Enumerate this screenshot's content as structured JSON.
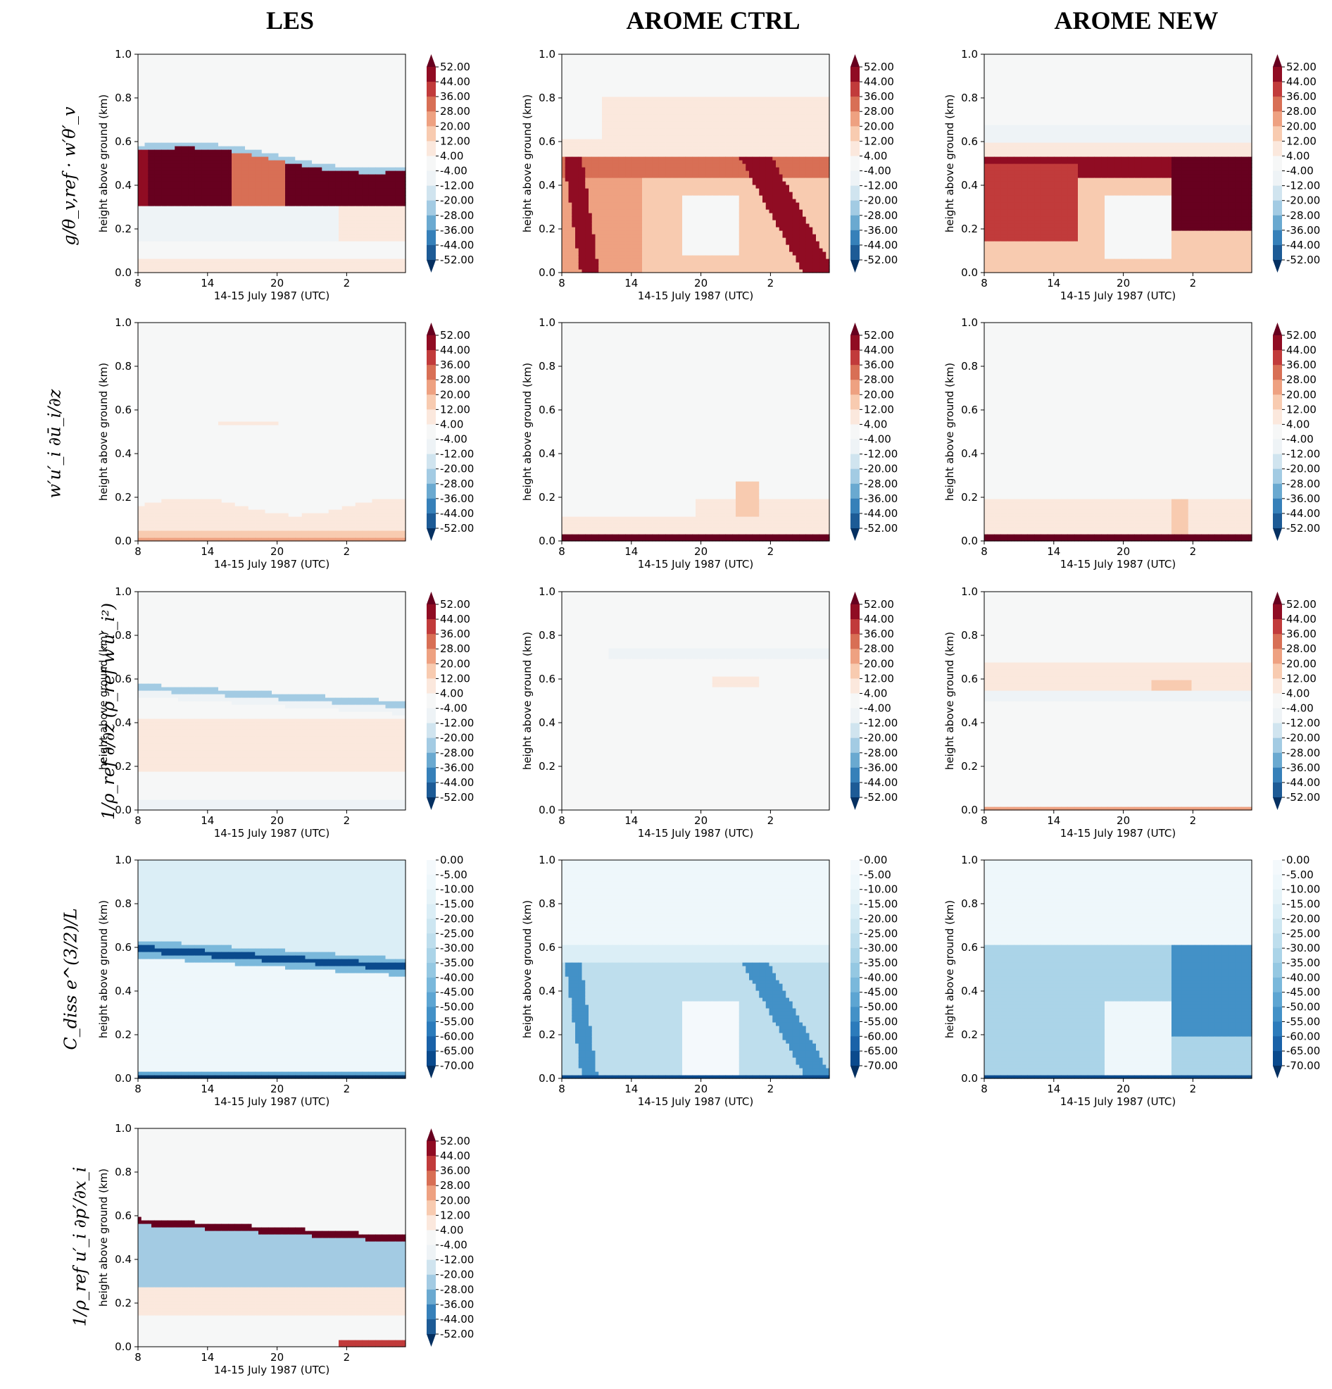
{
  "column_titles": [
    "LES",
    "AROME CTRL",
    "AROME NEW"
  ],
  "row_labels": [
    "g/θ_v,ref · w′θ′_v",
    "w′u′_i ∂ū_i/∂z",
    "1/ρ_ref ∂/∂z (ρ_ref w′u′_i²)",
    "C_diss e^(3/2)/L",
    "1/ρ_ref u′_i ∂p′/∂x_i"
  ],
  "colors": {
    "diverging": [
      "#053061",
      "#1d5b96",
      "#3680b9",
      "#6aa9d0",
      "#a3cbe3",
      "#d0e4ef",
      "#eef3f6",
      "#f6f7f7",
      "#fbe8dd",
      "#f8cbb0",
      "#eea181",
      "#d86f55",
      "#c13b3b",
      "#900c23",
      "#67001f"
    ],
    "sequential": [
      "#053061",
      "#0a4a8d",
      "#1a62a8",
      "#2c7bbb",
      "#4391c7",
      "#5da5d2",
      "#7ab8db",
      "#95c8e2",
      "#abd4e8",
      "#bedeed",
      "#cde6f1",
      "#dbeef6",
      "#e6f3f8",
      "#eef7fb",
      "#f4f9fc"
    ]
  },
  "chart_data": [
    {
      "type": "heatmap",
      "row": 0,
      "col": 0,
      "column_title": "LES",
      "xlabel": "14-15 July 1987 (UTC)",
      "ylabel": "height above ground (km)",
      "xticks": [
        "8",
        "14",
        "20",
        "2"
      ],
      "yticks": [
        "0.0",
        "0.2",
        "0.4",
        "0.6",
        "0.8",
        "1.0"
      ],
      "ylim": [
        0,
        1
      ],
      "colorbar": {
        "levels": [
          "52.00",
          "44.00",
          "36.00",
          "28.00",
          "20.00",
          "12.00",
          "4.00",
          "-4.00",
          "-12.00",
          "-20.00",
          "-28.00",
          "-36.00",
          "-44.00",
          "-52.00"
        ],
        "extend": "both",
        "scheme": "diverging"
      },
      "pattern": "les_buoy"
    },
    {
      "type": "heatmap",
      "row": 0,
      "col": 1,
      "column_title": "AROME CTRL",
      "xlabel": "14-15 July 1987 (UTC)",
      "ylabel": "height above ground (km)",
      "xticks": [
        "8",
        "14",
        "20",
        "2"
      ],
      "yticks": [
        "0.0",
        "0.2",
        "0.4",
        "0.6",
        "0.8",
        "1.0"
      ],
      "ylim": [
        0,
        1
      ],
      "colorbar": {
        "levels": [
          "52.00",
          "44.00",
          "36.00",
          "28.00",
          "20.00",
          "12.00",
          "4.00",
          "-4.00",
          "-12.00",
          "-20.00",
          "-28.00",
          "-36.00",
          "-44.00",
          "-52.00"
        ],
        "extend": "both",
        "scheme": "diverging"
      },
      "pattern": "ctrl_buoy"
    },
    {
      "type": "heatmap",
      "row": 0,
      "col": 2,
      "column_title": "AROME NEW",
      "xlabel": "14-15 July 1987 (UTC)",
      "ylabel": "height above ground (km)",
      "xticks": [
        "8",
        "14",
        "20",
        "2"
      ],
      "yticks": [
        "0.0",
        "0.2",
        "0.4",
        "0.6",
        "0.8",
        "1.0"
      ],
      "ylim": [
        0,
        1
      ],
      "colorbar": {
        "levels": [
          "52.00",
          "44.00",
          "36.00",
          "28.00",
          "20.00",
          "12.00",
          "4.00",
          "-4.00",
          "-12.00",
          "-20.00",
          "-28.00",
          "-36.00",
          "-44.00",
          "-52.00"
        ],
        "extend": "both",
        "scheme": "diverging"
      },
      "pattern": "new_buoy"
    },
    {
      "type": "heatmap",
      "row": 1,
      "col": 0,
      "xlabel": "14-15 July 1987 (UTC)",
      "ylabel": "height above ground (km)",
      "xticks": [
        "8",
        "14",
        "20",
        "2"
      ],
      "yticks": [
        "0.0",
        "0.2",
        "0.4",
        "0.6",
        "0.8",
        "1.0"
      ],
      "ylim": [
        0,
        1
      ],
      "colorbar": {
        "levels": [
          "52.00",
          "44.00",
          "36.00",
          "28.00",
          "20.00",
          "12.00",
          "4.00",
          "-4.00",
          "-12.00",
          "-20.00",
          "-28.00",
          "-36.00",
          "-44.00",
          "-52.00"
        ],
        "extend": "both",
        "scheme": "diverging"
      },
      "pattern": "les_shear"
    },
    {
      "type": "heatmap",
      "row": 1,
      "col": 1,
      "xlabel": "14-15 July 1987 (UTC)",
      "ylabel": "height above ground (km)",
      "xticks": [
        "8",
        "14",
        "20",
        "2"
      ],
      "yticks": [
        "0.0",
        "0.2",
        "0.4",
        "0.6",
        "0.8",
        "1.0"
      ],
      "ylim": [
        0,
        1
      ],
      "colorbar": {
        "levels": [
          "52.00",
          "44.00",
          "36.00",
          "28.00",
          "20.00",
          "12.00",
          "4.00",
          "-4.00",
          "-12.00",
          "-20.00",
          "-28.00",
          "-36.00",
          "-44.00",
          "-52.00"
        ],
        "extend": "both",
        "scheme": "diverging"
      },
      "pattern": "ctrl_shear"
    },
    {
      "type": "heatmap",
      "row": 1,
      "col": 2,
      "xlabel": "14-15 July 1987 (UTC)",
      "ylabel": "height above ground (km)",
      "xticks": [
        "8",
        "14",
        "20",
        "2"
      ],
      "yticks": [
        "0.0",
        "0.2",
        "0.4",
        "0.6",
        "0.8",
        "1.0"
      ],
      "ylim": [
        0,
        1
      ],
      "colorbar": {
        "levels": [
          "52.00",
          "44.00",
          "36.00",
          "28.00",
          "20.00",
          "12.00",
          "4.00",
          "-4.00",
          "-12.00",
          "-20.00",
          "-28.00",
          "-36.00",
          "-44.00",
          "-52.00"
        ],
        "extend": "both",
        "scheme": "diverging"
      },
      "pattern": "new_shear"
    },
    {
      "type": "heatmap",
      "row": 2,
      "col": 0,
      "xlabel": "14-15 July 1987 (UTC)",
      "ylabel": "height above ground (km)",
      "xticks": [
        "8",
        "14",
        "20",
        "2"
      ],
      "yticks": [
        "0.0",
        "0.2",
        "0.4",
        "0.6",
        "0.8",
        "1.0"
      ],
      "ylim": [
        0,
        1
      ],
      "colorbar": {
        "levels": [
          "52.00",
          "44.00",
          "36.00",
          "28.00",
          "20.00",
          "12.00",
          "4.00",
          "-4.00",
          "-12.00",
          "-20.00",
          "-28.00",
          "-36.00",
          "-44.00",
          "-52.00"
        ],
        "extend": "both",
        "scheme": "diverging"
      },
      "pattern": "les_transp"
    },
    {
      "type": "heatmap",
      "row": 2,
      "col": 1,
      "xlabel": "14-15 July 1987 (UTC)",
      "ylabel": "height above ground (km)",
      "xticks": [
        "8",
        "14",
        "20",
        "2"
      ],
      "yticks": [
        "0.0",
        "0.2",
        "0.4",
        "0.6",
        "0.8",
        "1.0"
      ],
      "ylim": [
        0,
        1
      ],
      "colorbar": {
        "levels": [
          "52.00",
          "44.00",
          "36.00",
          "28.00",
          "20.00",
          "12.00",
          "4.00",
          "-4.00",
          "-12.00",
          "-20.00",
          "-28.00",
          "-36.00",
          "-44.00",
          "-52.00"
        ],
        "extend": "both",
        "scheme": "diverging"
      },
      "pattern": "ctrl_transp"
    },
    {
      "type": "heatmap",
      "row": 2,
      "col": 2,
      "xlabel": "14-15 July 1987 (UTC)",
      "ylabel": "height above ground (km)",
      "xticks": [
        "8",
        "14",
        "20",
        "2"
      ],
      "yticks": [
        "0.0",
        "0.2",
        "0.4",
        "0.6",
        "0.8",
        "1.0"
      ],
      "ylim": [
        0,
        1
      ],
      "colorbar": {
        "levels": [
          "52.00",
          "44.00",
          "36.00",
          "28.00",
          "20.00",
          "12.00",
          "4.00",
          "-4.00",
          "-12.00",
          "-20.00",
          "-28.00",
          "-36.00",
          "-44.00",
          "-52.00"
        ],
        "extend": "both",
        "scheme": "diverging"
      },
      "pattern": "new_transp"
    },
    {
      "type": "heatmap",
      "row": 3,
      "col": 0,
      "xlabel": "14-15 July 1987 (UTC)",
      "ylabel": "height above ground (km)",
      "xticks": [
        "8",
        "14",
        "20",
        "2"
      ],
      "yticks": [
        "0.0",
        "0.2",
        "0.4",
        "0.6",
        "0.8",
        "1.0"
      ],
      "ylim": [
        0,
        1
      ],
      "colorbar": {
        "levels": [
          "0.00",
          "-5.00",
          "-10.00",
          "-15.00",
          "-20.00",
          "-25.00",
          "-30.00",
          "-35.00",
          "-40.00",
          "-45.00",
          "-50.00",
          "-55.00",
          "-60.00",
          "-65.00",
          "-70.00"
        ],
        "extend": "min",
        "scheme": "sequential"
      },
      "pattern": "les_diss"
    },
    {
      "type": "heatmap",
      "row": 3,
      "col": 1,
      "xlabel": "14-15 July 1987 (UTC)",
      "ylabel": "height above ground (km)",
      "xticks": [
        "8",
        "14",
        "20",
        "2"
      ],
      "yticks": [
        "0.0",
        "0.2",
        "0.4",
        "0.6",
        "0.8",
        "1.0"
      ],
      "ylim": [
        0,
        1
      ],
      "colorbar": {
        "levels": [
          "0.00",
          "-5.00",
          "-10.00",
          "-15.00",
          "-20.00",
          "-25.00",
          "-30.00",
          "-35.00",
          "-40.00",
          "-45.00",
          "-50.00",
          "-55.00",
          "-60.00",
          "-65.00",
          "-70.00"
        ],
        "extend": "min",
        "scheme": "sequential"
      },
      "pattern": "ctrl_diss"
    },
    {
      "type": "heatmap",
      "row": 3,
      "col": 2,
      "xlabel": "14-15 July 1987 (UTC)",
      "ylabel": "height above ground (km)",
      "xticks": [
        "8",
        "14",
        "20",
        "2"
      ],
      "yticks": [
        "0.0",
        "0.2",
        "0.4",
        "0.6",
        "0.8",
        "1.0"
      ],
      "ylim": [
        0,
        1
      ],
      "colorbar": {
        "levels": [
          "0.00",
          "-5.00",
          "-10.00",
          "-15.00",
          "-20.00",
          "-25.00",
          "-30.00",
          "-35.00",
          "-40.00",
          "-45.00",
          "-50.00",
          "-55.00",
          "-60.00",
          "-65.00",
          "-70.00"
        ],
        "extend": "min",
        "scheme": "sequential"
      },
      "pattern": "new_diss"
    },
    {
      "type": "heatmap",
      "row": 4,
      "col": 0,
      "xlabel": "14-15 July 1987 (UTC)",
      "ylabel": "height above ground (km)",
      "xticks": [
        "8",
        "14",
        "20",
        "2"
      ],
      "yticks": [
        "0.0",
        "0.2",
        "0.4",
        "0.6",
        "0.8",
        "1.0"
      ],
      "ylim": [
        0,
        1
      ],
      "colorbar": {
        "levels": [
          "52.00",
          "44.00",
          "36.00",
          "28.00",
          "20.00",
          "12.00",
          "4.00",
          "-4.00",
          "-12.00",
          "-20.00",
          "-28.00",
          "-36.00",
          "-44.00",
          "-52.00"
        ],
        "extend": "both",
        "scheme": "diverging"
      },
      "pattern": "les_press"
    }
  ]
}
